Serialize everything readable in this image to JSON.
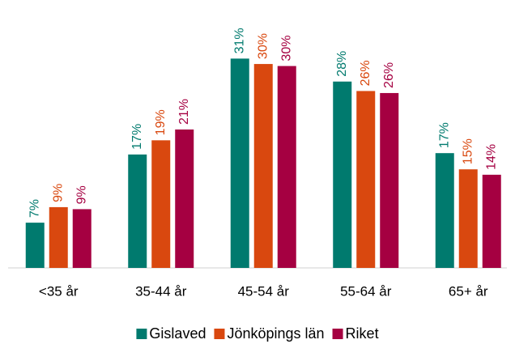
{
  "chart_data": {
    "type": "bar",
    "categories": [
      "<35 år",
      "35-44 år",
      "45-54 år",
      "55-64 år",
      "65+ år"
    ],
    "series": [
      {
        "name": "Gislaved",
        "color": "#007a6e",
        "values": [
          6.7,
          16.8,
          31.0,
          27.6,
          17.0
        ],
        "value_labels": [
          "7%",
          "17%",
          "31%",
          "28%",
          "17%"
        ]
      },
      {
        "name": "Jönköpings län",
        "color": "#d9480f",
        "values": [
          9.0,
          18.9,
          30.2,
          26.2,
          14.6
        ],
        "value_labels": [
          "9%",
          "19%",
          "30%",
          "26%",
          "15%"
        ]
      },
      {
        "name": "Riket",
        "color": "#a50041",
        "values": [
          8.7,
          20.5,
          29.9,
          25.9,
          13.8
        ],
        "value_labels": [
          "9%",
          "21%",
          "30%",
          "26%",
          "14%"
        ]
      }
    ],
    "ylim": [
      0,
      38
    ],
    "legend": "bottom"
  }
}
